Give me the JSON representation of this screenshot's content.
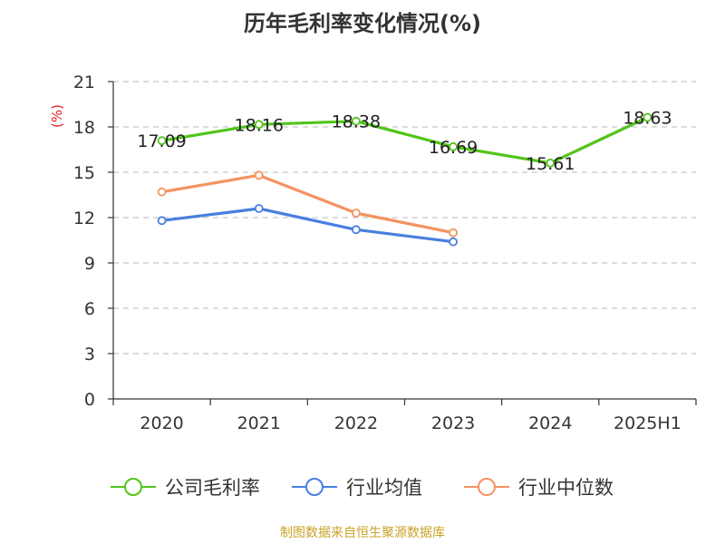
{
  "chart_data": {
    "type": "line",
    "title": "历年毛利率变化情况(%)",
    "ylabel": "(%)",
    "ylim": [
      0,
      21
    ],
    "yticks": [
      "0",
      "3",
      "6",
      "9",
      "12",
      "15",
      "18",
      "21"
    ],
    "grid": true,
    "legend_position": "bottom",
    "categories": [
      "2020",
      "2021",
      "2022",
      "2023",
      "2024",
      "2025H1"
    ],
    "series": [
      {
        "name": "公司毛利率",
        "color": "#52c41a",
        "values": [
          17.09,
          18.16,
          18.38,
          16.69,
          15.61,
          18.63
        ],
        "labels": [
          "17.09",
          "18.16",
          "18.38",
          "16.69",
          "15.61",
          "18.63"
        ]
      },
      {
        "name": "行业均值",
        "color": "#4a7fe0",
        "values": [
          11.8,
          12.6,
          11.2,
          10.4,
          null,
          null
        ]
      },
      {
        "name": "行业中位数",
        "color": "#f59360",
        "values": [
          13.7,
          14.8,
          12.3,
          11.0,
          null,
          null
        ]
      }
    ]
  },
  "source": "制图数据来自恒生聚源数据库"
}
